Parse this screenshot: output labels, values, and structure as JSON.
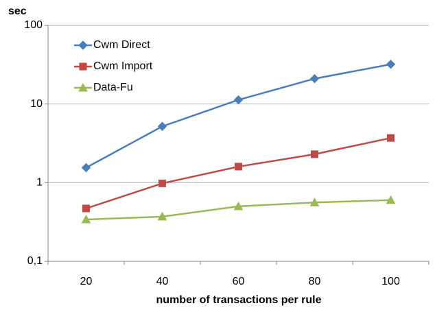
{
  "chart_data": {
    "type": "line",
    "y_label": "sec",
    "x_label": "number of transactions per rule",
    "categories": [
      "20",
      "40",
      "60",
      "80",
      "100"
    ],
    "series": [
      {
        "name": "Cwm Direct",
        "color": "#4a7ebb",
        "marker": "diamond",
        "values": [
          1.55,
          5.2,
          11.3,
          21,
          32
        ]
      },
      {
        "name": "Cwm Import",
        "color": "#be4b48",
        "marker": "square",
        "values": [
          0.47,
          0.98,
          1.6,
          2.3,
          3.7
        ]
      },
      {
        "name": "Data-Fu",
        "color": "#98b954",
        "marker": "triangle",
        "values": [
          0.34,
          0.37,
          0.5,
          0.56,
          0.6
        ]
      }
    ],
    "ylim": [
      0.1,
      100
    ],
    "yticks": [
      {
        "value": 0.1,
        "label": "0,1"
      },
      1,
      10,
      100
    ],
    "log_y": true,
    "grid": true,
    "legend": "upper-left"
  }
}
